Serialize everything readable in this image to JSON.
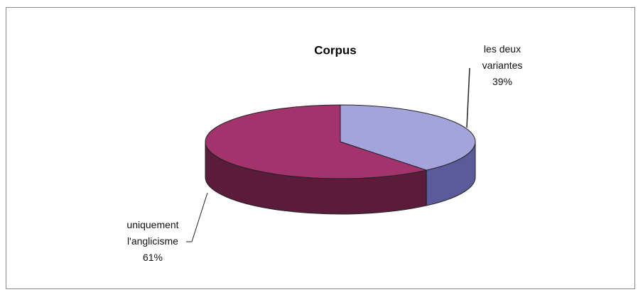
{
  "chart_data": {
    "type": "pie3d",
    "title": "Corpus",
    "categories": [
      "les deux variantes",
      "uniquement l'anglicisme"
    ],
    "values": [
      39,
      61
    ],
    "value_labels": [
      "39%",
      "61%"
    ],
    "colors": [
      "#a4a4dc",
      "#a2336c"
    ],
    "side_colors": [
      "#5b5b9c",
      "#5a1c3a"
    ]
  }
}
